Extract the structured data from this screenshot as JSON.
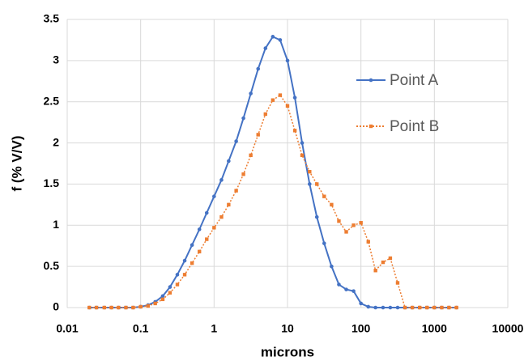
{
  "chart_data": {
    "type": "line",
    "log_x": true,
    "grid": true,
    "legend_position": "right",
    "x_label": "microns",
    "y_label": "f (% V/V)",
    "x": [
      0.02,
      0.025,
      0.032,
      0.04,
      0.05,
      0.063,
      0.079,
      0.1,
      0.126,
      0.158,
      0.2,
      0.251,
      0.316,
      0.398,
      0.501,
      0.631,
      0.794,
      1,
      1.26,
      1.58,
      2,
      2.51,
      3.16,
      3.98,
      5.01,
      6.31,
      7.94,
      10,
      12.6,
      15.8,
      20,
      25.1,
      31.6,
      39.8,
      50.1,
      63.1,
      79.4,
      100,
      126,
      158,
      200,
      251,
      316,
      398,
      501,
      631,
      794,
      1000,
      1260,
      1580,
      2000
    ],
    "series": [
      {
        "name": "Point A",
        "color": "#4472c4",
        "marker": "circle",
        "dash": "solid",
        "values": [
          0,
          0,
          0,
          0,
          0,
          0,
          0,
          0.01,
          0.03,
          0.07,
          0.14,
          0.25,
          0.4,
          0.57,
          0.76,
          0.95,
          1.15,
          1.35,
          1.55,
          1.78,
          2.02,
          2.3,
          2.6,
          2.9,
          3.15,
          3.29,
          3.25,
          3.0,
          2.55,
          2.0,
          1.5,
          1.1,
          0.78,
          0.5,
          0.28,
          0.22,
          0.2,
          0.05,
          0.01,
          0,
          0,
          0,
          0,
          0,
          0,
          0,
          0,
          0,
          0,
          0,
          0
        ]
      },
      {
        "name": "Point B",
        "color": "#ed7d31",
        "marker": "square",
        "dash": "dotted",
        "values": [
          0,
          0,
          0,
          0,
          0,
          0,
          0,
          0.01,
          0.02,
          0.05,
          0.1,
          0.18,
          0.28,
          0.4,
          0.54,
          0.68,
          0.83,
          0.97,
          1.1,
          1.25,
          1.42,
          1.62,
          1.85,
          2.1,
          2.35,
          2.52,
          2.58,
          2.45,
          2.15,
          1.85,
          1.65,
          1.5,
          1.35,
          1.25,
          1.05,
          0.92,
          1.0,
          1.03,
          0.8,
          0.45,
          0.55,
          0.6,
          0.3,
          0,
          0,
          0,
          0,
          0,
          0,
          0,
          0
        ]
      }
    ],
    "xlim": [
      0.01,
      10000
    ],
    "xticks": [
      0.01,
      0.1,
      1,
      10,
      100,
      1000,
      10000
    ],
    "ylim": [
      0,
      3.5
    ],
    "yticks": [
      0,
      0.5,
      1,
      1.5,
      2,
      2.5,
      3,
      3.5
    ]
  }
}
